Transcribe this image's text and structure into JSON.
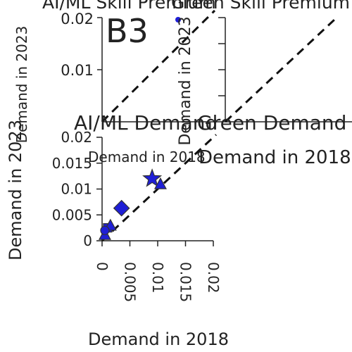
{
  "chart_data": [
    {
      "type": "scatter",
      "title": "AI/ML Skill Premium",
      "xlabel": "Demand in 2018",
      "ylabel": "Demand in 2023",
      "ylim": [
        0,
        0.02
      ],
      "y_ticks": [
        "0.01",
        "0.02"
      ],
      "diagonal": "y = x (dashed)",
      "series": []
    },
    {
      "type": "scatter",
      "title": "Green Skill Premium",
      "ylabel": "Demand in 2023",
      "series": []
    },
    {
      "type": "scatter",
      "title": "AI/ML Demand",
      "xlabel": "Demand in 2018",
      "ylabel": "Demand in 2023",
      "xlim": [
        0,
        0.02
      ],
      "ylim": [
        0,
        0.02
      ],
      "x_ticks": [
        "0",
        "0.005",
        "0.01",
        "0.015",
        "0.02"
      ],
      "y_ticks": [
        "0",
        "0.005",
        "0.01",
        "0.015",
        "0.02"
      ],
      "diagonal": "y = x (dashed)",
      "marker_color": "#1f1fd6",
      "series": [
        {
          "points": [
            {
              "x": 0.0005,
              "y": 0.0012,
              "marker": "triangle"
            },
            {
              "x": 0.001,
              "y": 0.0025,
              "marker": "square"
            },
            {
              "x": 0.0015,
              "y": 0.003,
              "marker": "triangle"
            },
            {
              "x": 0.0005,
              "y": 0.002,
              "marker": "circle"
            },
            {
              "x": 0.0035,
              "y": 0.0063,
              "marker": "diamond"
            },
            {
              "x": 0.009,
              "y": 0.012,
              "marker": "star"
            },
            {
              "x": 0.0105,
              "y": 0.011,
              "marker": "triangle"
            }
          ]
        }
      ]
    },
    {
      "type": "scatter",
      "title": "Green Demand",
      "xlabel": "Demand in 2018",
      "series": []
    }
  ],
  "panel_letter": "B3"
}
